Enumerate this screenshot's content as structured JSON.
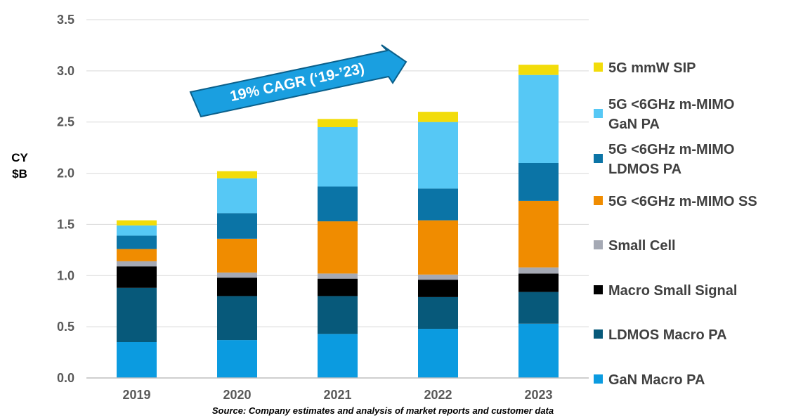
{
  "chart_data": {
    "type": "bar",
    "stacked": true,
    "categories": [
      "2019",
      "2020",
      "2021",
      "2022",
      "2023"
    ],
    "ylabel_lines": [
      "CY",
      "$B"
    ],
    "ylim": [
      0,
      3.5
    ],
    "yticks": [
      "0.0",
      "0.5",
      "1.0",
      "1.5",
      "2.0",
      "2.5",
      "3.0",
      "3.5"
    ],
    "grid": true,
    "legend_position": "right",
    "series": [
      {
        "name": "GaN Macro PA",
        "legend_lines": [
          "GaN Macro PA"
        ],
        "color": "#0b9be0",
        "values": [
          0.35,
          0.37,
          0.43,
          0.48,
          0.53
        ]
      },
      {
        "name": "LDMOS Macro PA",
        "legend_lines": [
          "LDMOS Macro PA"
        ],
        "color": "#07597a",
        "values": [
          0.53,
          0.43,
          0.37,
          0.31,
          0.31
        ]
      },
      {
        "name": "Macro Small Signal",
        "legend_lines": [
          "Macro Small Signal"
        ],
        "color": "#000000",
        "values": [
          0.21,
          0.18,
          0.17,
          0.17,
          0.18
        ]
      },
      {
        "name": "Small Cell",
        "legend_lines": [
          "Small Cell"
        ],
        "color": "#a5a9b4",
        "values": [
          0.05,
          0.05,
          0.05,
          0.05,
          0.06
        ]
      },
      {
        "name": "5G <6GHz m-MIMO SS",
        "legend_lines": [
          "5G <6GHz m-MIMO SS"
        ],
        "color": "#f08c00",
        "values": [
          0.12,
          0.33,
          0.51,
          0.53,
          0.65
        ]
      },
      {
        "name": "5G <6GHz m-MIMO LDMOS PA",
        "legend_lines": [
          "5G <6GHz m-MIMO",
          "LDMOS PA"
        ],
        "color": "#0b74a6",
        "values": [
          0.13,
          0.25,
          0.34,
          0.31,
          0.37
        ]
      },
      {
        "name": "5G <6GHz m-MIMO GaN PA",
        "legend_lines": [
          "5G <6GHz m-MIMO",
          "GaN PA"
        ],
        "color": "#56c8f5",
        "values": [
          0.1,
          0.34,
          0.58,
          0.65,
          0.86
        ]
      },
      {
        "name": "5G mmW SIP",
        "legend_lines": [
          "5G mmW SIP"
        ],
        "color": "#f2dc0a",
        "values": [
          0.05,
          0.07,
          0.08,
          0.1,
          0.1
        ]
      }
    ],
    "annotation": "19% CAGR (‘19-’23)",
    "source": "Source: Company estimates and analysis of market reports and customer data"
  }
}
